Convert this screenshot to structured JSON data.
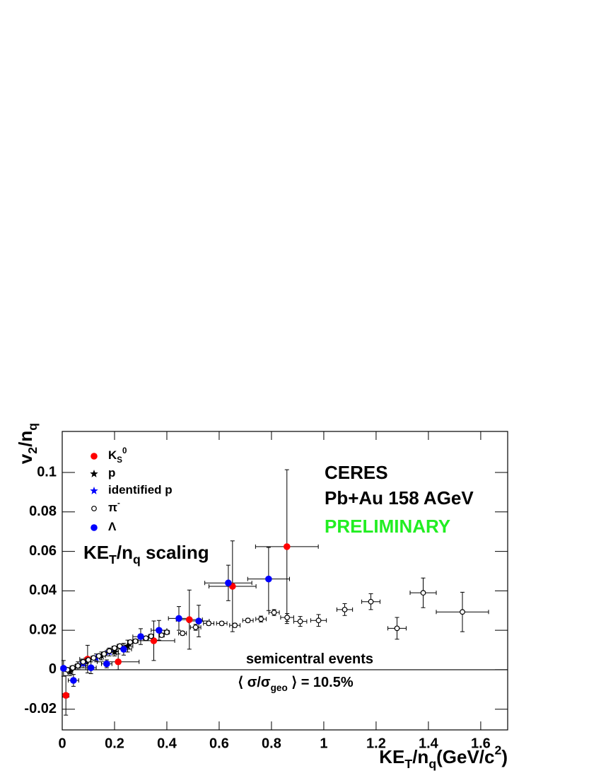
{
  "chart_data": {
    "type": "scatter",
    "xlabel": [
      {
        "text": "KE"
      },
      {
        "text": "T",
        "sub": true
      },
      {
        "text": "/n"
      },
      {
        "text": "q",
        "sub": true
      },
      {
        "text": "(GeV/c"
      },
      {
        "text": "2",
        "sup": true
      },
      {
        "text": ")"
      }
    ],
    "ylabel": [
      {
        "text": "v"
      },
      {
        "text": "2",
        "sub": true
      },
      {
        "text": "/n"
      },
      {
        "text": "q",
        "sub": true
      }
    ],
    "xlim": [
      0,
      1.703
    ],
    "ylim": [
      -0.0305,
      0.1208
    ],
    "xticks": [
      0,
      0.2,
      0.4,
      0.6,
      0.8,
      1,
      1.2,
      1.4,
      1.6
    ],
    "yticks": [
      -0.02,
      0,
      0.02,
      0.04,
      0.06,
      0.08,
      0.1
    ],
    "zero_line": true,
    "annotations": [
      {
        "parts": [
          {
            "text": "CERES"
          }
        ],
        "color": "#000000"
      },
      {
        "parts": [
          {
            "text": "Pb+Au 158 AGeV"
          }
        ],
        "color": "#000000"
      },
      {
        "parts": [
          {
            "text": "PRELIMINARY"
          }
        ],
        "color": "#22ee22"
      },
      {
        "parts": [
          {
            "text": "KE"
          },
          {
            "text": "T",
            "sub": true
          },
          {
            "text": "/n"
          },
          {
            "text": "q",
            "sub": true
          },
          {
            "text": " scaling"
          }
        ],
        "color": "#000000"
      },
      {
        "parts": [
          {
            "text": "semicentral events"
          }
        ],
        "color": "#000000"
      },
      {
        "parts": [
          {
            "text": "⟨ σ/σ"
          },
          {
            "text": "geo",
            "sub": true
          },
          {
            "text": " ⟩ = 10.5%"
          }
        ],
        "color": "#000000"
      }
    ],
    "series": [
      {
        "name": [
          {
            "text": "K"
          },
          {
            "text": "S",
            "sub": true
          },
          {
            "text": "0",
            "sup": true
          }
        ],
        "color": "#ff0000",
        "marker": "circle",
        "x": [
          0.014,
          0.097,
          0.214,
          0.35,
          0.486,
          0.651,
          0.859
        ],
        "values": [
          -0.013,
          0.0054,
          0.004,
          0.0147,
          0.0254,
          0.0423,
          0.0624
        ],
        "xerr": [
          0.012,
          0.03,
          0.08,
          0.08,
          0.05,
          0.09,
          0.12
        ],
        "yerr": [
          0.01,
          0.007,
          0.004,
          0.01,
          0.015,
          0.023,
          0.039
        ]
      },
      {
        "name": [
          {
            "text": "p"
          }
        ],
        "color": "#000000",
        "marker": "star",
        "x": [
          0.03,
          0.06,
          0.09,
          0.15,
          0.2,
          0.25
        ],
        "values": [
          -0.001,
          0.002,
          0.004,
          0.007,
          0.009,
          0.012
        ],
        "xerr": [
          0.01,
          0.01,
          0.01,
          0.015,
          0.015,
          0.02
        ],
        "yerr": [
          0.002,
          0.002,
          0.002,
          0.002,
          0.002,
          0.003
        ]
      },
      {
        "name": [
          {
            "text": "identified p"
          }
        ],
        "color": "#0000ff",
        "marker": "star",
        "x": [
          0.08,
          0.13,
          0.18
        ],
        "values": [
          0.003,
          0.006,
          0.009
        ],
        "xerr": [
          0.01,
          0.015,
          0.015
        ],
        "yerr": [
          0.002,
          0.002,
          0.002
        ]
      },
      {
        "name": [
          {
            "text": "π"
          },
          {
            "text": "-",
            "sup": true
          }
        ],
        "color": "#000000",
        "marker": "open",
        "x": [
          0.02,
          0.04,
          0.06,
          0.08,
          0.1,
          0.12,
          0.14,
          0.16,
          0.18,
          0.2,
          0.22,
          0.26,
          0.28,
          0.32,
          0.34,
          0.38,
          0.4,
          0.46,
          0.51,
          0.56,
          0.61,
          0.66,
          0.71,
          0.76,
          0.81,
          0.86,
          0.91,
          0.98,
          1.08,
          1.18,
          1.28,
          1.38,
          1.53
        ],
        "values": [
          0,
          0.001,
          0.002,
          0.004,
          0.005,
          0.006,
          0.007,
          0.008,
          0.0095,
          0.011,
          0.012,
          0.014,
          0.0145,
          0.016,
          0.017,
          0.0175,
          0.019,
          0.0185,
          0.0215,
          0.0235,
          0.0235,
          0.0225,
          0.025,
          0.0257,
          0.029,
          0.0265,
          0.0245,
          0.025,
          0.0305,
          0.0345,
          0.021,
          0.039,
          0.0293
        ],
        "xerr": [
          0.01,
          0.01,
          0.01,
          0.01,
          0.01,
          0.01,
          0.01,
          0.01,
          0.01,
          0.01,
          0.01,
          0.01,
          0.01,
          0.01,
          0.01,
          0.01,
          0.01,
          0.015,
          0.02,
          0.02,
          0.02,
          0.02,
          0.02,
          0.02,
          0.02,
          0.025,
          0.025,
          0.03,
          0.03,
          0.035,
          0.035,
          0.05,
          0.1
        ],
        "yerr": [
          0.001,
          0.001,
          0.001,
          0.001,
          0.001,
          0.001,
          0.001,
          0.001,
          0.001,
          0.001,
          0.001,
          0.001,
          0.001,
          0.001,
          0.001,
          0.001,
          0.001,
          0.001,
          0.0015,
          0.001,
          0.001,
          0.001,
          0.001,
          0.0015,
          0.0015,
          0.002,
          0.0025,
          0.003,
          0.003,
          0.004,
          0.0055,
          0.0075,
          0.01
        ]
      },
      {
        "name": [
          {
            "text": "Λ"
          }
        ],
        "color": "#0000ff",
        "marker": "circle",
        "x": [
          0.005,
          0.043,
          0.11,
          0.17,
          0.235,
          0.3,
          0.37,
          0.446,
          0.522,
          0.635,
          0.789
        ],
        "values": [
          0.0007,
          -0.0054,
          0.001,
          0.003,
          0.0104,
          0.0168,
          0.02,
          0.026,
          0.0247,
          0.044,
          0.046
        ],
        "xerr": [
          0.01,
          0.02,
          0.02,
          0.02,
          0.03,
          0.03,
          0.03,
          0.04,
          0.04,
          0.09,
          0.08
        ],
        "yerr": [
          0.004,
          0.003,
          0.003,
          0.002,
          0.003,
          0.004,
          0.005,
          0.006,
          0.008,
          0.009,
          0.016
        ]
      }
    ]
  }
}
